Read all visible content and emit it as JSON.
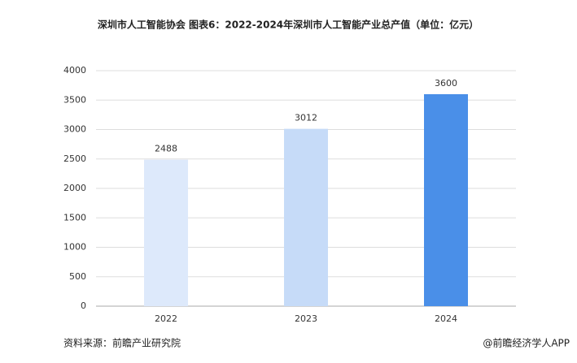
{
  "chart_data": {
    "type": "bar",
    "title": "深圳市人工智能协会  图表6：2022-2024年深圳市人工智能产业总产值（单位：亿元）",
    "categories": [
      "2022",
      "2023",
      "2024"
    ],
    "values": [
      2488,
      3012,
      3600
    ],
    "colors": [
      "#dde9fb",
      "#c6dbf8",
      "#4a8fe8"
    ],
    "ylim": [
      0,
      4000
    ],
    "yticks": [
      0,
      500,
      1000,
      1500,
      2000,
      2500,
      3000,
      3500,
      4000
    ],
    "grid": true,
    "source": "资料来源：前瞻产业研究院",
    "credit": "@前瞻经济学人APP"
  }
}
